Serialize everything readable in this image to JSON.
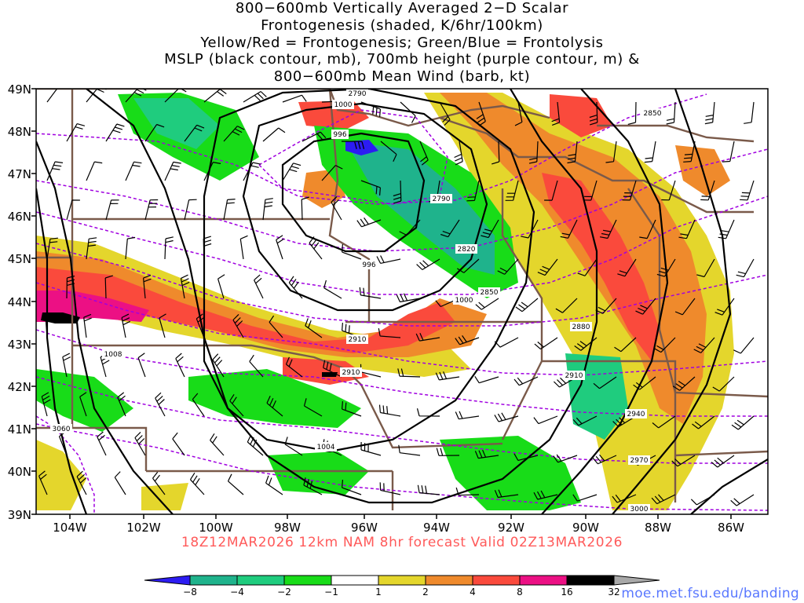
{
  "title_lines": [
    "800−600mb Vertically Averaged 2−D Scalar",
    "Frontogenesis (shaded, K/6hr/100km)",
    "Yellow/Red = Frontogenesis;  Green/Blue = Frontolysis",
    "MSLP (black contour, mb), 700mb height (purple contour, m) &",
    "800−600mb Mean Wind (barb, kt)"
  ],
  "lat_labels": [
    "49N",
    "48N",
    "47N",
    "46N",
    "45N",
    "44N",
    "43N",
    "42N",
    "41N",
    "40N",
    "39N"
  ],
  "lon_labels": [
    "104W",
    "102W",
    "100W",
    "98W",
    "96W",
    "94W",
    "92W",
    "90W",
    "88W",
    "86W"
  ],
  "footer": "18Z12MAR2026 12km NAM 8hr forecast Valid 02Z13MAR2026",
  "credit": "moe.met.fsu.edu/banding",
  "colorbar": {
    "labels": [
      "−8",
      "−4",
      "−2",
      "−1",
      "1",
      "2",
      "4",
      "8",
      "16",
      "32"
    ],
    "colors": [
      "#2c1cf2",
      "#1fb38c",
      "#1fcc7e",
      "#18dc18",
      "#ffffff",
      "#e4d62c",
      "#ef8a2c",
      "#fa4a3c",
      "#ec1084",
      "#000000",
      "#a8a8a8"
    ]
  },
  "mslp_labels": [
    "1000",
    "996",
    "996",
    "1000",
    "1008",
    "1004"
  ],
  "height_labels": [
    "2790",
    "2790",
    "2820",
    "2850",
    "2850",
    "2880",
    "2910",
    "2910",
    "2910",
    "2940",
    "2970",
    "3000",
    "3060"
  ],
  "colors": {
    "mslp": "#000000",
    "height": "#a000e0",
    "border": "#7a5a4a",
    "frontogenesis_weak": "#e4d62c",
    "frontogenesis_moderate": "#ef8a2c",
    "frontogenesis_strong": "#fa4a3c",
    "frontogenesis_intense": "#ec1084",
    "frontolysis_weak": "#18dc18",
    "frontolysis_moderate": "#1fcc7e",
    "frontolysis_strong": "#1fb38c",
    "frontolysis_intense": "#2c1cf2"
  }
}
